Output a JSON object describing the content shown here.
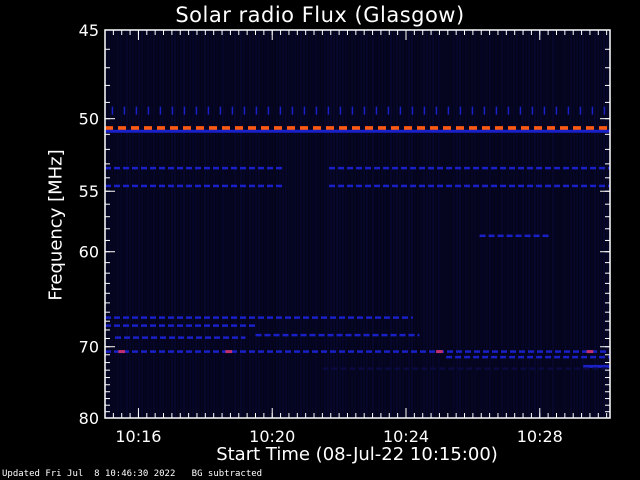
{
  "chart_data": {
    "type": "heatmap",
    "title": "Solar radio Flux (Glasgow)",
    "xlabel": "Start Time (08-Jul-22 10:15:00)",
    "ylabel": "Frequency [MHz]",
    "x_ticks": [
      "10:16",
      "10:20",
      "10:24",
      "10:28"
    ],
    "x_tick_minutes": [
      1,
      5,
      9,
      13
    ],
    "xlim_minutes": [
      0,
      15.1
    ],
    "y_ticks": [
      45,
      50,
      55,
      60,
      70,
      80
    ],
    "ylim_mhz": [
      45,
      80
    ],
    "y_scale": "reciprocal",
    "minor_x_per_major": 4,
    "colors": {
      "background": "#000000",
      "axes": "#ffffff",
      "low": "#0a0a40",
      "mid": "#1a20c8",
      "high": "#ff5a10",
      "magenta": "#c03070"
    },
    "bands": [
      {
        "freq": 49.5,
        "t0": 0.2,
        "t1": 15.0,
        "level": "mid",
        "style": "ticks"
      },
      {
        "freq": 50.6,
        "t0": 0.0,
        "t1": 15.1,
        "level": "high",
        "style": "dashed"
      },
      {
        "freq": 50.8,
        "t0": 0.0,
        "t1": 15.1,
        "level": "mid",
        "style": "solid"
      },
      {
        "freq": 53.3,
        "t0": 0.0,
        "t1": 5.3,
        "level": "mid",
        "style": "dashed"
      },
      {
        "freq": 53.3,
        "t0": 6.7,
        "t1": 15.1,
        "level": "mid",
        "style": "dashed"
      },
      {
        "freq": 54.6,
        "t0": 0.0,
        "t1": 5.3,
        "level": "mid",
        "style": "dashed"
      },
      {
        "freq": 54.6,
        "t0": 6.7,
        "t1": 15.1,
        "level": "mid",
        "style": "dashed"
      },
      {
        "freq": 58.6,
        "t0": 11.2,
        "t1": 13.3,
        "level": "mid",
        "style": "dashed"
      },
      {
        "freq": 66.6,
        "t0": 0.0,
        "t1": 9.2,
        "level": "mid",
        "style": "dashed"
      },
      {
        "freq": 67.5,
        "t0": 0.0,
        "t1": 4.5,
        "level": "mid",
        "style": "dashed"
      },
      {
        "freq": 68.9,
        "t0": 0.3,
        "t1": 4.2,
        "level": "mid",
        "style": "dashed"
      },
      {
        "freq": 68.6,
        "t0": 4.5,
        "t1": 9.4,
        "level": "mid",
        "style": "dashed"
      },
      {
        "freq": 70.6,
        "t0": 0.0,
        "t1": 15.1,
        "level": "mid",
        "style": "dashed"
      },
      {
        "freq": 70.6,
        "t0": 3.6,
        "t1": 3.8,
        "level": "magenta",
        "style": "solid"
      },
      {
        "freq": 70.6,
        "t0": 0.4,
        "t1": 0.6,
        "level": "magenta",
        "style": "solid"
      },
      {
        "freq": 70.6,
        "t0": 9.9,
        "t1": 10.1,
        "level": "magenta",
        "style": "solid"
      },
      {
        "freq": 70.6,
        "t0": 14.4,
        "t1": 14.6,
        "level": "magenta",
        "style": "solid"
      },
      {
        "freq": 71.3,
        "t0": 10.2,
        "t1": 15.1,
        "level": "mid",
        "style": "dashed"
      },
      {
        "freq": 72.5,
        "t0": 14.3,
        "t1": 15.1,
        "level": "mid",
        "style": "solid"
      },
      {
        "freq": 72.8,
        "t0": 6.5,
        "t1": 15.1,
        "level": "low",
        "style": "dashed"
      }
    ]
  },
  "footer": {
    "text": "Updated Fri Jul  8 10:46:30 2022   BG subtracted"
  }
}
